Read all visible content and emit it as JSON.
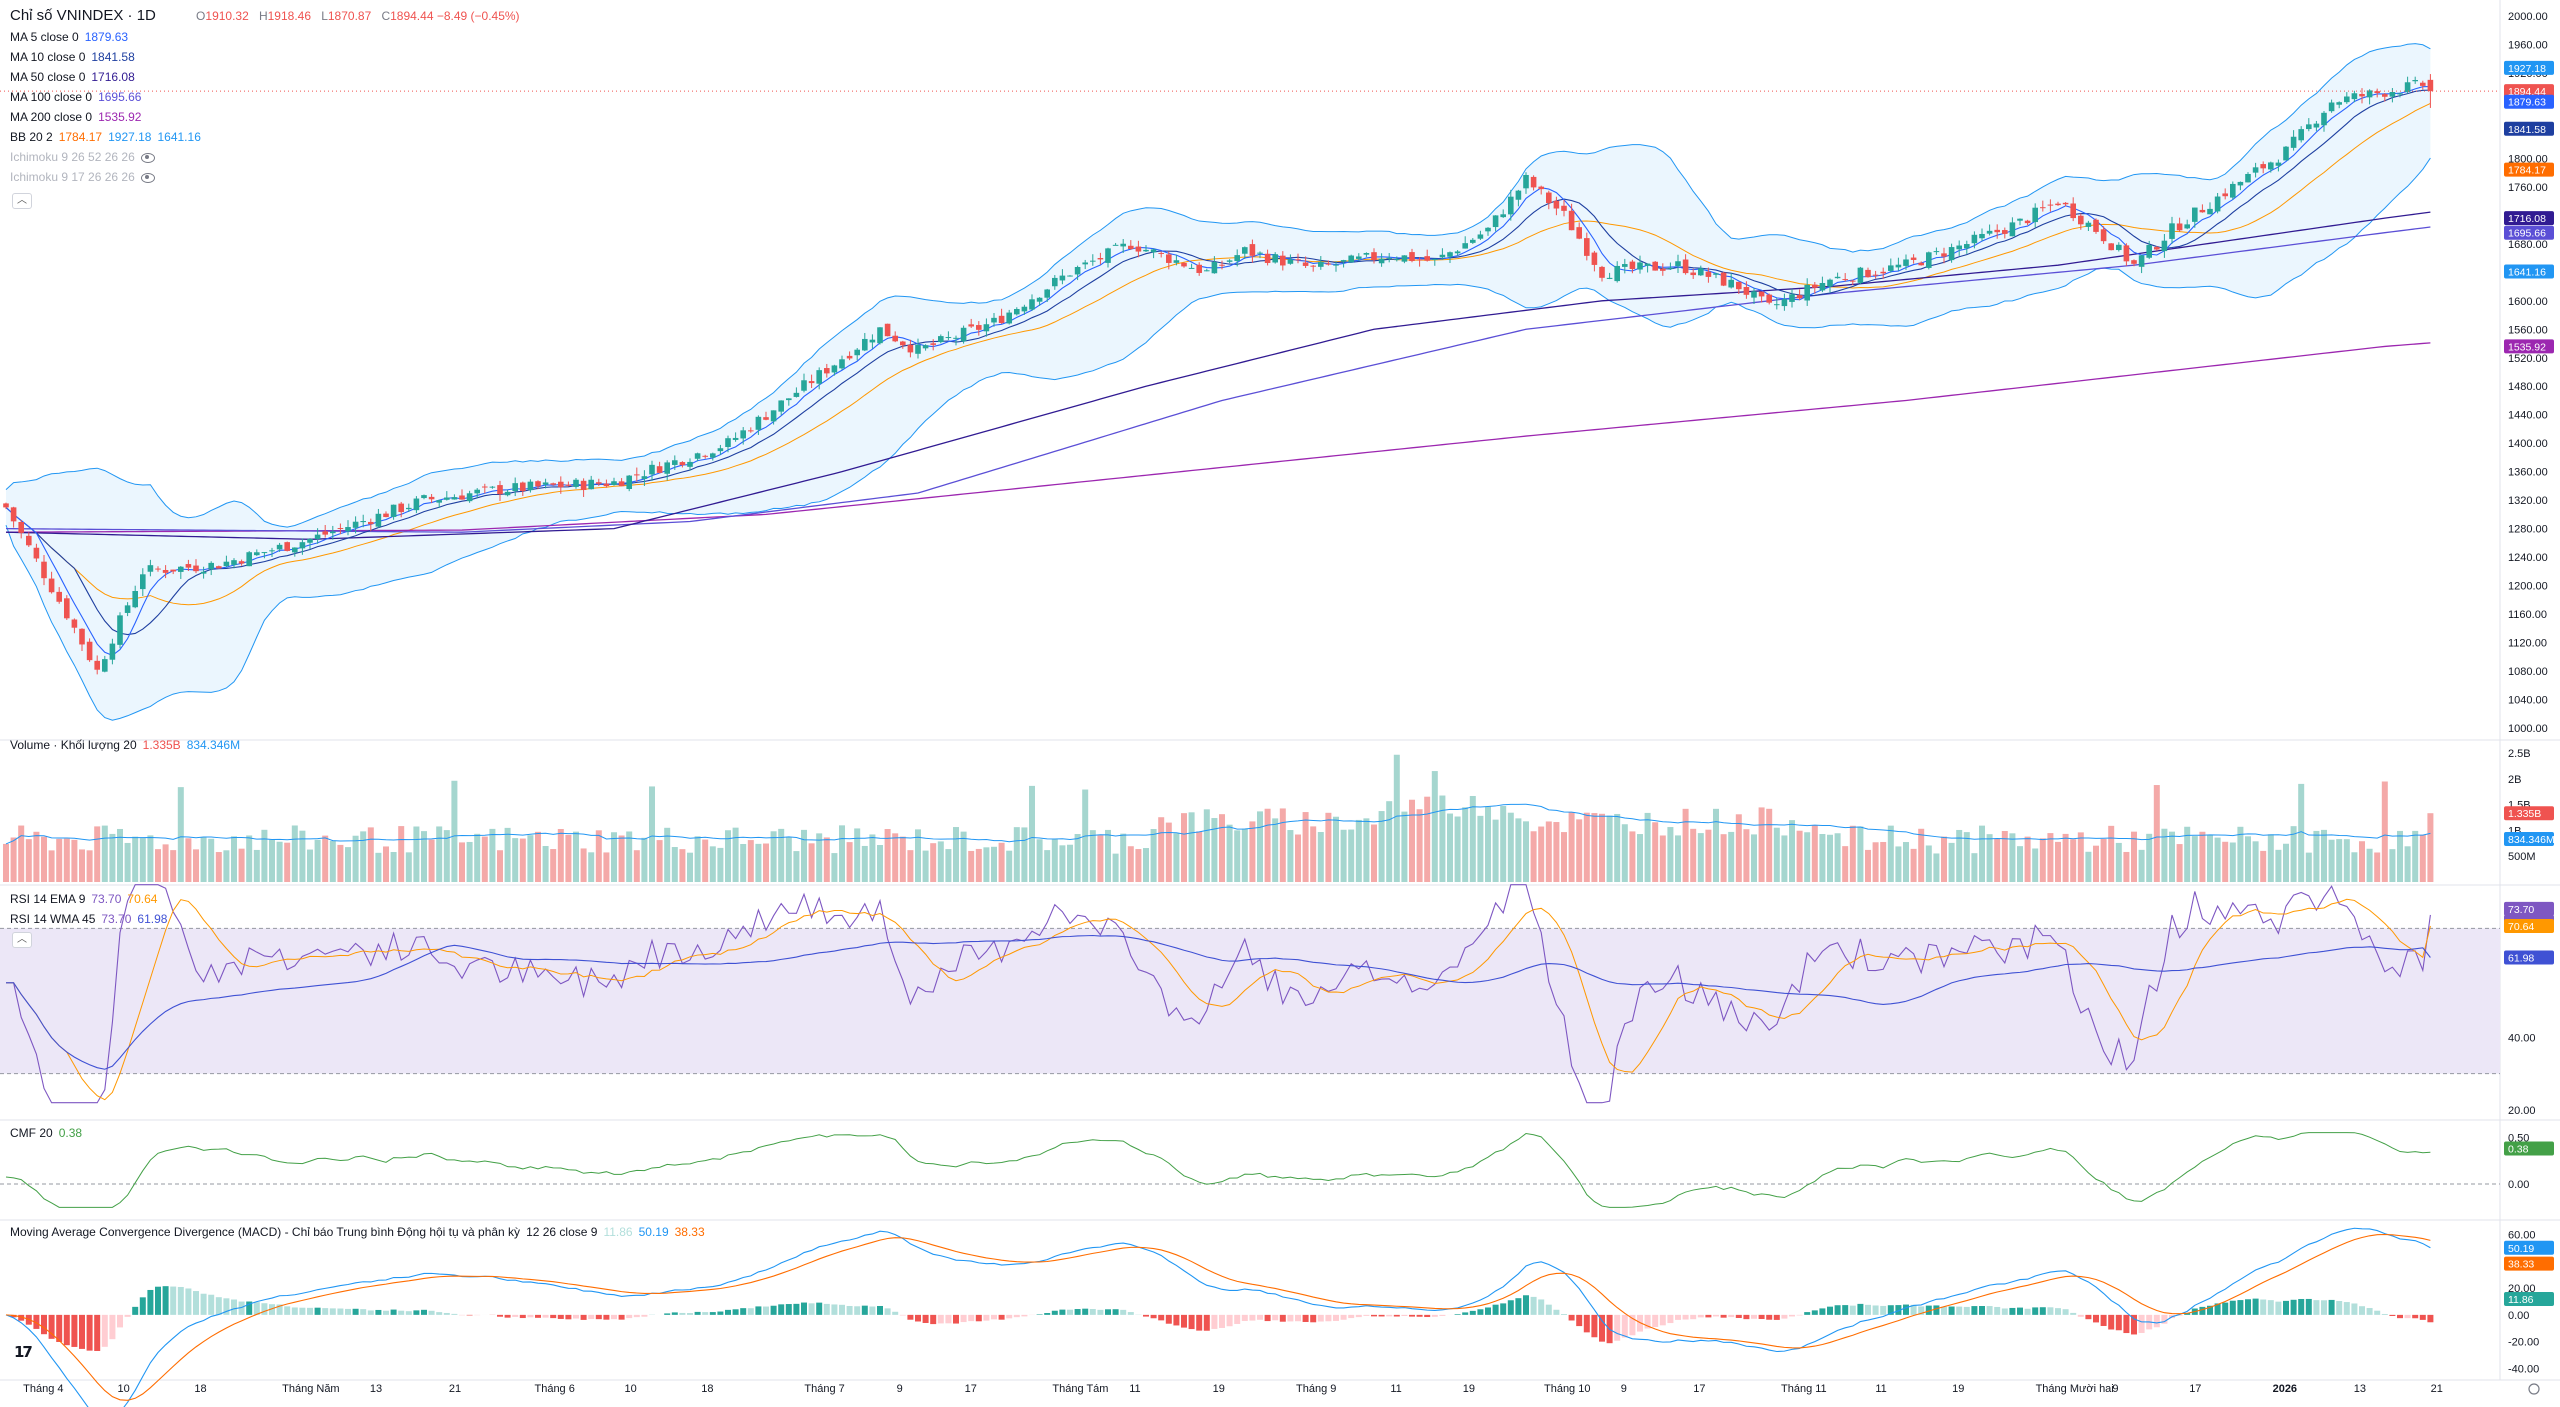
{
  "header": {
    "title": "Chỉ số VNINDEX · 1D",
    "o_label": "O",
    "o_value": "1910.32",
    "h_label": "H",
    "h_value": "1918.46",
    "l_label": "L",
    "l_value": "1870.87",
    "c_label": "C",
    "c_value": "1894.44 −8.49 (−0.45%)"
  },
  "legend": {
    "ma5": {
      "name": "MA 5 close 0",
      "value": "1879.63",
      "color": "#2962ff"
    },
    "ma10": {
      "name": "MA 10 close 0",
      "value": "1841.58",
      "color": "#1e3fa0"
    },
    "ma50": {
      "name": "MA 50 close 0",
      "value": "1716.08",
      "color": "#311b92"
    },
    "ma100": {
      "name": "MA 100 close 0",
      "value": "1695.66",
      "color": "#5b4fd6"
    },
    "ma200": {
      "name": "MA 200 close 0",
      "value": "1535.92",
      "color": "#9c27b0"
    },
    "bb": {
      "name": "BB 20 2",
      "v1": "1784.17",
      "v2": "1927.18",
      "v3": "1641.16"
    },
    "ichi1": {
      "name": "Ichimoku 9 26 52 26 26"
    },
    "ichi2": {
      "name": "Ichimoku 9 17 26 26 26"
    },
    "volume": {
      "name": "Volume · Khối lượng 20",
      "v1": "1.335B",
      "v2": "834.346M"
    },
    "rsi1": {
      "name": "RSI 14 EMA 9",
      "v1": "73.70",
      "v2": "70.64"
    },
    "rsi2": {
      "name": "RSI 14 WMA 45",
      "v1": "73.70",
      "v2": "61.98"
    },
    "cmf": {
      "name": "CMF 20",
      "v1": "0.38"
    },
    "macd": {
      "name": "Moving Average Convergence Divergence (MACD) - Chỉ báo Trung bình Động hội tụ và phân kỳ",
      "params": "12 26 close 9",
      "v1": "11.86",
      "v2": "50.19",
      "v3": "38.33"
    }
  },
  "colors": {
    "up": "#26a69a",
    "down": "#ef5350",
    "vol_up": "#a5d6cf",
    "vol_down": "#f4a9a8",
    "bb_line": "#2196f3",
    "bb_fill": "#e3f2fd",
    "rsi_band": "#ece7f7",
    "rsi_line": "#7e57c2",
    "rsi_ma": "#ff9800",
    "rsi_wma": "#3f51d4",
    "cmf_line": "#43a047",
    "macd_line": "#2196f3",
    "signal_line": "#ff6d00"
  },
  "chart_data": [
    {
      "type": "candlestick",
      "title": "Chỉ số VNINDEX · 1D",
      "ylim": [
        1000,
        2000
      ],
      "y_ticks": [
        "2000.00",
        "1960.00",
        "1920.00",
        "1880.00",
        "1840.00",
        "1800.00",
        "1760.00",
        "1720.00",
        "1680.00",
        "1640.00",
        "1600.00",
        "1560.00",
        "1520.00",
        "1480.00",
        "1440.00",
        "1400.00",
        "1360.00",
        "1320.00",
        "1280.00",
        "1240.00",
        "1200.00",
        "1160.00",
        "1120.00",
        "1080.00",
        "1040.00",
        "1000.00"
      ],
      "x_ticks": [
        "Tháng 4",
        "10",
        "18",
        "Tháng Năm",
        "13",
        "21",
        "Tháng 6",
        "10",
        "18",
        "Tháng 7",
        "9",
        "17",
        "Tháng Tám",
        "11",
        "19",
        "Tháng 9",
        "11",
        "19",
        "Tháng 10",
        "9",
        "17",
        "Tháng 11",
        "11",
        "19",
        "Tháng Mười hai",
        "9",
        "17",
        "2026",
        "13",
        "21"
      ],
      "closes_anchor": [
        [
          0,
          1310
        ],
        [
          8,
          1160
        ],
        [
          12,
          1080
        ],
        [
          18,
          1220
        ],
        [
          28,
          1230
        ],
        [
          40,
          1265
        ],
        [
          55,
          1320
        ],
        [
          65,
          1335
        ],
        [
          80,
          1345
        ],
        [
          95,
          1400
        ],
        [
          105,
          1480
        ],
        [
          115,
          1560
        ],
        [
          120,
          1530
        ],
        [
          130,
          1570
        ],
        [
          140,
          1640
        ],
        [
          148,
          1680
        ],
        [
          158,
          1640
        ],
        [
          163,
          1670
        ],
        [
          172,
          1645
        ],
        [
          182,
          1665
        ],
        [
          188,
          1655
        ],
        [
          195,
          1700
        ],
        [
          200,
          1770
        ],
        [
          205,
          1720
        ],
        [
          210,
          1640
        ],
        [
          220,
          1650
        ],
        [
          228,
          1620
        ],
        [
          232,
          1590
        ],
        [
          240,
          1630
        ],
        [
          250,
          1650
        ],
        [
          258,
          1680
        ],
        [
          265,
          1710
        ],
        [
          270,
          1740
        ],
        [
          275,
          1700
        ],
        [
          280,
          1650
        ],
        [
          285,
          1700
        ],
        [
          293,
          1760
        ],
        [
          300,
          1810
        ],
        [
          306,
          1880
        ],
        [
          313,
          1894
        ]
      ],
      "last": {
        "open": 1910.32,
        "high": 1918.46,
        "low": 1870.87,
        "close": 1894.44
      },
      "badges": [
        {
          "label": "1927.18",
          "value": 1927.18,
          "color": "#2196f3"
        },
        {
          "label": "1894.44",
          "value": 1894.44,
          "color": "#ef5350"
        },
        {
          "label": "1879.63",
          "value": 1879.63,
          "color": "#2962ff"
        },
        {
          "label": "1841.58",
          "value": 1841.58,
          "color": "#1e3fa0"
        },
        {
          "label": "1784.17",
          "value": 1784.17,
          "color": "#ff6d00"
        },
        {
          "label": "1716.08",
          "value": 1716.08,
          "color": "#311b92"
        },
        {
          "label": "1695.66",
          "value": 1695.66,
          "color": "#5b4fd6"
        },
        {
          "label": "1641.16",
          "value": 1641.16,
          "color": "#2196f3"
        },
        {
          "label": "1535.92",
          "value": 1535.92,
          "color": "#9c27b0"
        }
      ],
      "ma200_anchor": [
        [
          0,
          1275
        ],
        [
          60,
          1278
        ],
        [
          100,
          1300
        ],
        [
          150,
          1355
        ],
        [
          200,
          1410
        ],
        [
          250,
          1460
        ],
        [
          313,
          1535.92
        ]
      ],
      "ma100_anchor": [
        [
          0,
          1280
        ],
        [
          60,
          1275
        ],
        [
          90,
          1290
        ],
        [
          120,
          1330
        ],
        [
          160,
          1460
        ],
        [
          200,
          1560
        ],
        [
          240,
          1610
        ],
        [
          280,
          1650
        ],
        [
          313,
          1695.66
        ]
      ],
      "ma50_anchor": [
        [
          0,
          1275
        ],
        [
          40,
          1265
        ],
        [
          80,
          1280
        ],
        [
          110,
          1360
        ],
        [
          150,
          1480
        ],
        [
          180,
          1560
        ],
        [
          210,
          1600
        ],
        [
          240,
          1620
        ],
        [
          270,
          1650
        ],
        [
          313,
          1716.08
        ]
      ]
    },
    {
      "type": "bar",
      "title": "Volume · Khối lượng 20",
      "y_ticks": [
        "2.5B",
        "2B",
        "1.5B",
        "1B",
        "500M"
      ],
      "tick_values": [
        2.5,
        2.0,
        1.5,
        1.0,
        0.5
      ],
      "ylim": [
        0,
        2.6
      ],
      "last_values": {
        "volume": "1.335B",
        "ma": "834.346M"
      }
    },
    {
      "type": "line",
      "title": "RSI 14",
      "ylim": [
        20,
        80
      ],
      "y_ticks": [
        "40.00",
        "20.00"
      ],
      "tick_values": [
        40,
        20
      ],
      "band": [
        30,
        70
      ],
      "last_values": {
        "rsi": 73.7,
        "ema9": 70.64,
        "wma45": 61.98
      },
      "badges": [
        {
          "label": "73.70",
          "value": 73.7,
          "color": "#7e57c2"
        },
        {
          "label": "73.70",
          "value": 73.7,
          "color": "#7e57c2"
        },
        {
          "label": "70.64",
          "value": 70.64,
          "color": "#ff9800"
        },
        {
          "label": "61.98",
          "value": 61.98,
          "color": "#3f51d4"
        }
      ]
    },
    {
      "type": "line",
      "title": "CMF 20",
      "ylim": [
        -0.3,
        0.6
      ],
      "y_ticks": [
        "0.50",
        "0.00"
      ],
      "tick_values": [
        0.5,
        0.0
      ],
      "last_value": 0.38,
      "badges": [
        {
          "label": "0.38",
          "value": 0.38,
          "color": "#43a047"
        }
      ]
    },
    {
      "type": "bar",
      "title": "MACD 12 26 close 9",
      "ylim": [
        -45,
        65
      ],
      "y_ticks": [
        "60.00",
        "40.00",
        "20.00",
        "0.00",
        "-20.00",
        "-40.00"
      ],
      "tick_values": [
        60,
        40,
        20,
        0,
        -20,
        -40
      ],
      "last_values": {
        "histogram": 11.86,
        "macd": 50.19,
        "signal": 38.33
      },
      "badges": [
        {
          "label": "50.19",
          "value": 50.19,
          "color": "#2196f3"
        },
        {
          "label": "38.33",
          "value": 38.33,
          "color": "#ff6d00"
        },
        {
          "label": "11.86",
          "value": 11.86,
          "color": "#26a69a"
        }
      ]
    }
  ]
}
